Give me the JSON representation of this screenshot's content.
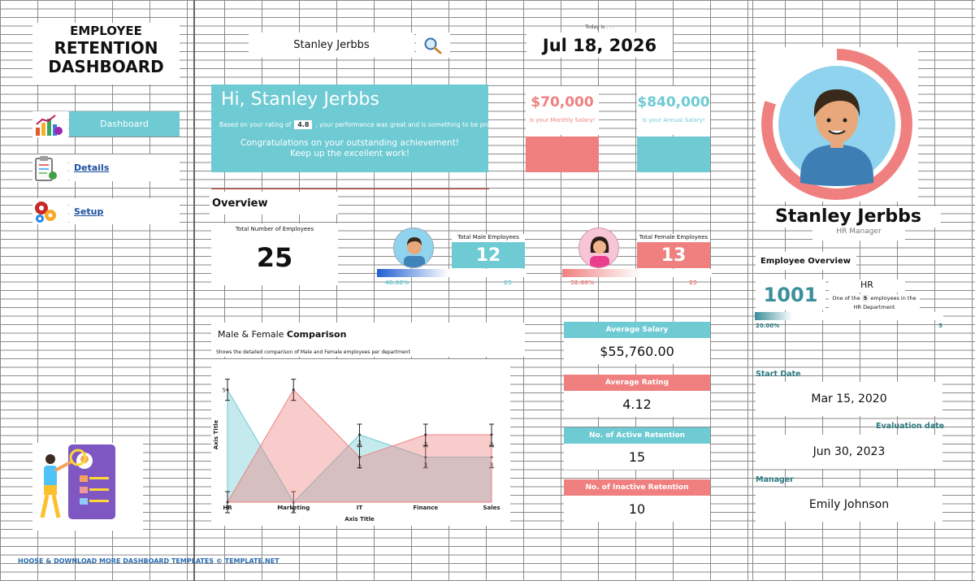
{
  "sidebar": {
    "title_lines": [
      "EMPLOYEE",
      "RETENTION",
      "DASHBOARD"
    ],
    "items": [
      {
        "label": "Dashboard",
        "icon": "chart-icon",
        "active": true
      },
      {
        "label": "Details",
        "icon": "clipboard-icon",
        "active": false
      },
      {
        "label": "Setup",
        "icon": "gears-icon",
        "active": false
      }
    ],
    "footer": "HOOSE & DOWNLOAD MORE DASHBOARD TEMPLATES ©  TEMPLATE.NET"
  },
  "search": {
    "value": "Stanley Jerbbs",
    "icon": "search-icon"
  },
  "date": {
    "label": "Today is . . .",
    "value": "Jul 18, 2026"
  },
  "greeting": {
    "hi": "Hi, Stanley Jerbbs",
    "rating_prefix": "Based on your rating of",
    "rating_value": "4.8",
    "rating_suffix": ", your performance was great and is something to be proud",
    "congrats_line1": "Congratulations on your outstanding achievement!",
    "congrats_line2": "Keep up the excellent work!"
  },
  "salary": {
    "monthly_value": "$70,000",
    "monthly_label": "is your Monthly Salary!",
    "annual_value": "$840,000",
    "annual_label": "is your Annual Salary!"
  },
  "overview": {
    "title": "Overview",
    "total_label": "Total Number of Employees",
    "total_value": "25",
    "male_label": "Total Male Employees",
    "male_value": "12",
    "male_pct": "48.00%",
    "male_pct_num": 48,
    "male_total": "25",
    "female_label": "Total Female Employees",
    "female_value": "13",
    "female_pct": "52.00%",
    "female_pct_num": 52,
    "female_total": "25"
  },
  "comparison": {
    "title_prefix": "Male & Female ",
    "title_bold": "Comparison",
    "subtitle": "Shows the detailed comparison of Male and Female employees per department"
  },
  "chart_data": {
    "type": "area",
    "categories": [
      "HR",
      "Marketing",
      "IT",
      "Finance",
      "Sales"
    ],
    "series": [
      {
        "values": [
          5,
          0,
          3,
          2,
          2
        ],
        "color": "#6ecad3"
      },
      {
        "values": [
          0,
          5,
          2,
          3,
          3
        ],
        "color": "#f08080"
      }
    ],
    "data_labels": [
      "",
      "5",
      "3",
      "3",
      "3",
      "",
      "",
      "2",
      "2",
      "2"
    ],
    "y_tick_labels": [
      "5"
    ],
    "x_tick_labels": [
      "HR",
      "Marketing",
      "IT",
      "Finance",
      "Sales"
    ],
    "xlabel": "Axis Title",
    "ylabel": "Axis Title",
    "ylim": [
      0,
      6
    ],
    "error_bars": true
  },
  "kpis": [
    {
      "label": "Average Salary",
      "value": "$55,760.00",
      "color": "#6ecad3"
    },
    {
      "label": "Average Rating",
      "value": "4.12",
      "color": "#f08080"
    },
    {
      "label": "No. of Active Retention",
      "value": "15",
      "color": "#6ecad3"
    },
    {
      "label": "No. of Inactive Retention",
      "value": "10",
      "color": "#f08080"
    }
  ],
  "profile": {
    "name": "Stanley Jerbbs",
    "role": "HR Manager",
    "overview_title": "Employee Overview",
    "employee_id": "1001",
    "department": "HR",
    "dept_prefix": "One of the",
    "dept_count": "5",
    "dept_suffix": "employees in the",
    "dept_suffix2": "HR Department",
    "dept_pct": "20.00%",
    "dept_pct_num": 20,
    "dept_total": "5",
    "ring_fill": 0.8
  },
  "dates": {
    "start_label": "Start Date",
    "start_value": "Mar 15, 2020",
    "eval_label": "Evaluation date",
    "eval_value": "Jun 30, 2023",
    "manager_label": "Manager",
    "manager_value": "Emily Johnson"
  }
}
